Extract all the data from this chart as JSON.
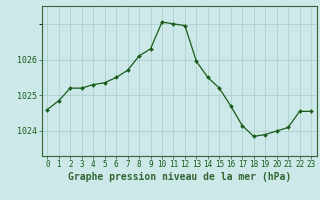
{
  "x": [
    0,
    1,
    2,
    3,
    4,
    5,
    6,
    7,
    8,
    9,
    10,
    11,
    12,
    13,
    14,
    15,
    16,
    17,
    18,
    19,
    20,
    21,
    22,
    23
  ],
  "y": [
    1024.6,
    1024.85,
    1025.2,
    1025.2,
    1025.3,
    1025.35,
    1025.5,
    1025.7,
    1026.1,
    1026.3,
    1027.05,
    1027.0,
    1026.95,
    1025.95,
    1025.5,
    1025.2,
    1024.7,
    1024.15,
    1023.85,
    1023.9,
    1024.0,
    1024.1,
    1024.55,
    1024.55
  ],
  "line_color": "#1a5c1a",
  "marker_color": "#1a5c1a",
  "background_color": "#cce8e8",
  "grid_color": "#aacccc",
  "axis_color": "#336633",
  "tick_color": "#1a5c1a",
  "xlabel": "Graphe pression niveau de la mer (hPa)",
  "xlabel_fontsize": 7,
  "ytick_labels": [
    "1024",
    "1025",
    "1026"
  ],
  "ytick_values": [
    1024,
    1025,
    1026
  ],
  "ylim": [
    1023.3,
    1027.5
  ],
  "xlim": [
    -0.5,
    23.5
  ],
  "xtick_fontsize": 5.5,
  "ytick_fontsize": 6
}
